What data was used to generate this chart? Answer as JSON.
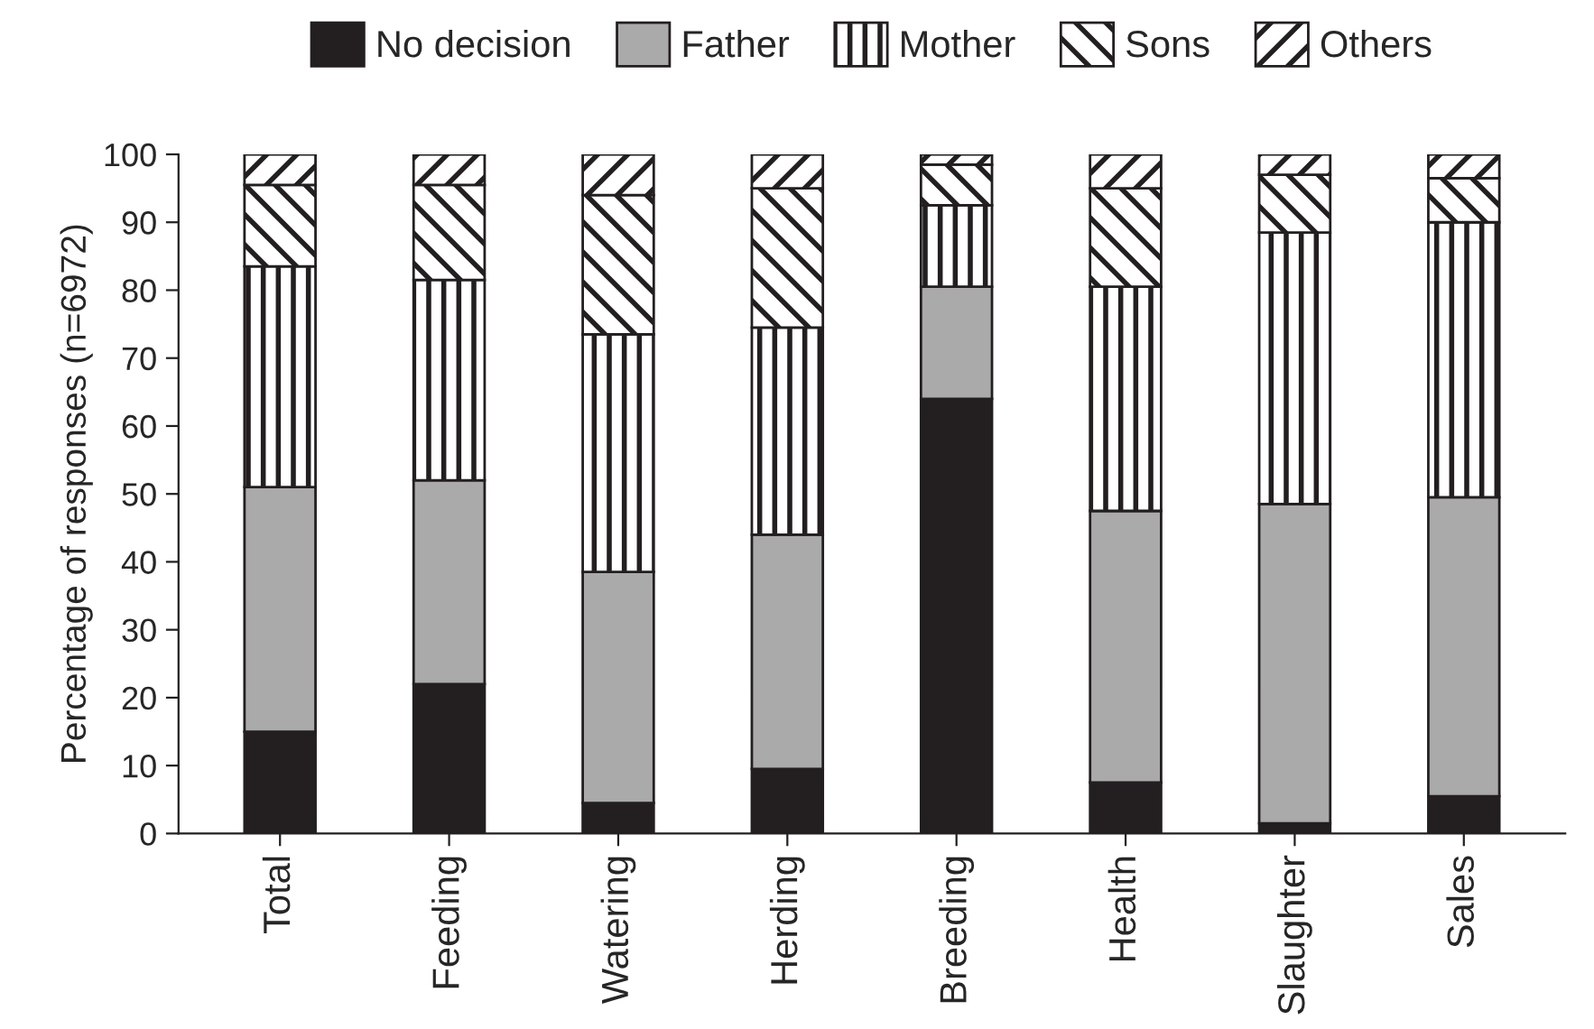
{
  "chart_data": {
    "type": "bar",
    "stacked": true,
    "ylabel": "Percentage of responses (n=6972)",
    "categories": [
      "Total",
      "Feeding",
      "Watering",
      "Herding",
      "Breeding",
      "Health",
      "Slaughter",
      "Sales"
    ],
    "series": [
      {
        "name": "No decision",
        "color": "#231f20",
        "values": [
          15,
          22,
          4.5,
          9.5,
          64,
          7.5,
          1.5,
          5.5
        ]
      },
      {
        "name": "Father",
        "color": "#aaaaaa",
        "values": [
          36,
          30,
          34,
          34.5,
          16.5,
          40,
          47,
          44
        ]
      },
      {
        "name": "Mother",
        "color": "#ffffff",
        "values": [
          32.5,
          29.5,
          35,
          30.5,
          12,
          33,
          40,
          40.5
        ]
      },
      {
        "name": "Sons",
        "color": "#ffffff",
        "values": [
          12,
          14,
          20.5,
          20.5,
          6,
          14.5,
          8.5,
          6.5
        ]
      },
      {
        "name": "Others",
        "color": "#ffffff",
        "values": [
          4.5,
          4.5,
          6,
          5,
          1.5,
          5,
          3,
          3.5
        ]
      }
    ],
    "ylim": [
      0,
      100
    ],
    "yticks": [
      0,
      10,
      20,
      30,
      40,
      50,
      60,
      70,
      80,
      90,
      100
    ],
    "grid": false,
    "legend": "top"
  }
}
